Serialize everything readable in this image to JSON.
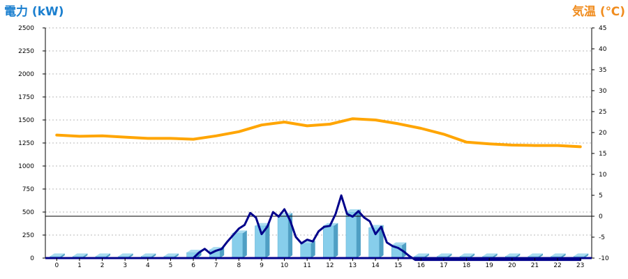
{
  "chart_data": {
    "type": "bar",
    "left_axis_label": "電力 (kW)",
    "right_axis_label": "気温 (℃)",
    "ylim_left": [
      0,
      2500
    ],
    "ylim_right": [
      -10,
      45
    ],
    "yticks_left": [
      "0",
      "250",
      "500",
      "750",
      "1000",
      "1250",
      "1500",
      "1750",
      "2000",
      "2250",
      "2500"
    ],
    "yticks_right": [
      "-10",
      "-5",
      "0",
      "5",
      "10",
      "15",
      "20",
      "25",
      "30",
      "35",
      "40",
      "45"
    ],
    "categories": [
      "0",
      "1",
      "2",
      "3",
      "4",
      "5",
      "6",
      "7",
      "8",
      "9",
      "10",
      "11",
      "12",
      "13",
      "14",
      "15",
      "16",
      "17",
      "18",
      "19",
      "20",
      "21",
      "22",
      "23"
    ],
    "grid": "horizontal dashed",
    "reference_line_right": 0,
    "series": [
      {
        "kind": "bar",
        "axis": "left",
        "color": "#87ceeb",
        "values": [
          20,
          20,
          20,
          20,
          20,
          20,
          60,
          90,
          270,
          350,
          460,
          160,
          350,
          500,
          330,
          140,
          20,
          20,
          20,
          20,
          20,
          20,
          20,
          20
        ]
      },
      {
        "kind": "line",
        "axis": "left",
        "color": "#00008b",
        "x": [
          0,
          0.5,
          1,
          1.5,
          2,
          2.5,
          3,
          3.5,
          4,
          4.5,
          5,
          5.5,
          6,
          6.25,
          6.5,
          6.75,
          7,
          7.25,
          7.5,
          7.75,
          8,
          8.25,
          8.5,
          8.75,
          9,
          9.25,
          9.5,
          9.75,
          10,
          10.25,
          10.5,
          10.75,
          11,
          11.25,
          11.5,
          11.75,
          12,
          12.25,
          12.5,
          12.75,
          13,
          13.25,
          13.5,
          13.75,
          14,
          14.25,
          14.5,
          14.75,
          15,
          15.25,
          15.5,
          15.75,
          16,
          16.5,
          17,
          17.5,
          18,
          18.5,
          19,
          19.5,
          20,
          20.5,
          21,
          21.5,
          22,
          22.5,
          23
        ],
        "values": [
          0,
          0,
          0,
          0,
          0,
          0,
          0,
          0,
          0,
          0,
          0,
          0,
          0,
          60,
          100,
          50,
          80,
          100,
          180,
          250,
          320,
          360,
          490,
          440,
          260,
          340,
          500,
          450,
          530,
          410,
          230,
          160,
          200,
          180,
          290,
          340,
          350,
          480,
          680,
          480,
          450,
          510,
          440,
          400,
          260,
          340,
          170,
          130,
          110,
          70,
          20,
          -20,
          -20,
          -20,
          -20,
          -20,
          -20,
          -20,
          -20,
          -20,
          -20,
          -20,
          -20,
          -20,
          -20,
          -20,
          -20
        ]
      },
      {
        "kind": "line",
        "axis": "right",
        "color": "#ffa500",
        "x": [
          0,
          1,
          2,
          3,
          4,
          5,
          6,
          7,
          8,
          9,
          10,
          11,
          12,
          13,
          14,
          15,
          16,
          17,
          18,
          19,
          20,
          21,
          22,
          23
        ],
        "values": [
          19.4,
          19.1,
          19.2,
          18.9,
          18.6,
          18.6,
          18.4,
          19.2,
          20.2,
          21.8,
          22.5,
          21.6,
          22.0,
          23.3,
          23.0,
          22.1,
          21.0,
          19.6,
          17.7,
          17.3,
          17.0,
          16.9,
          16.9,
          16.6
        ]
      }
    ]
  }
}
